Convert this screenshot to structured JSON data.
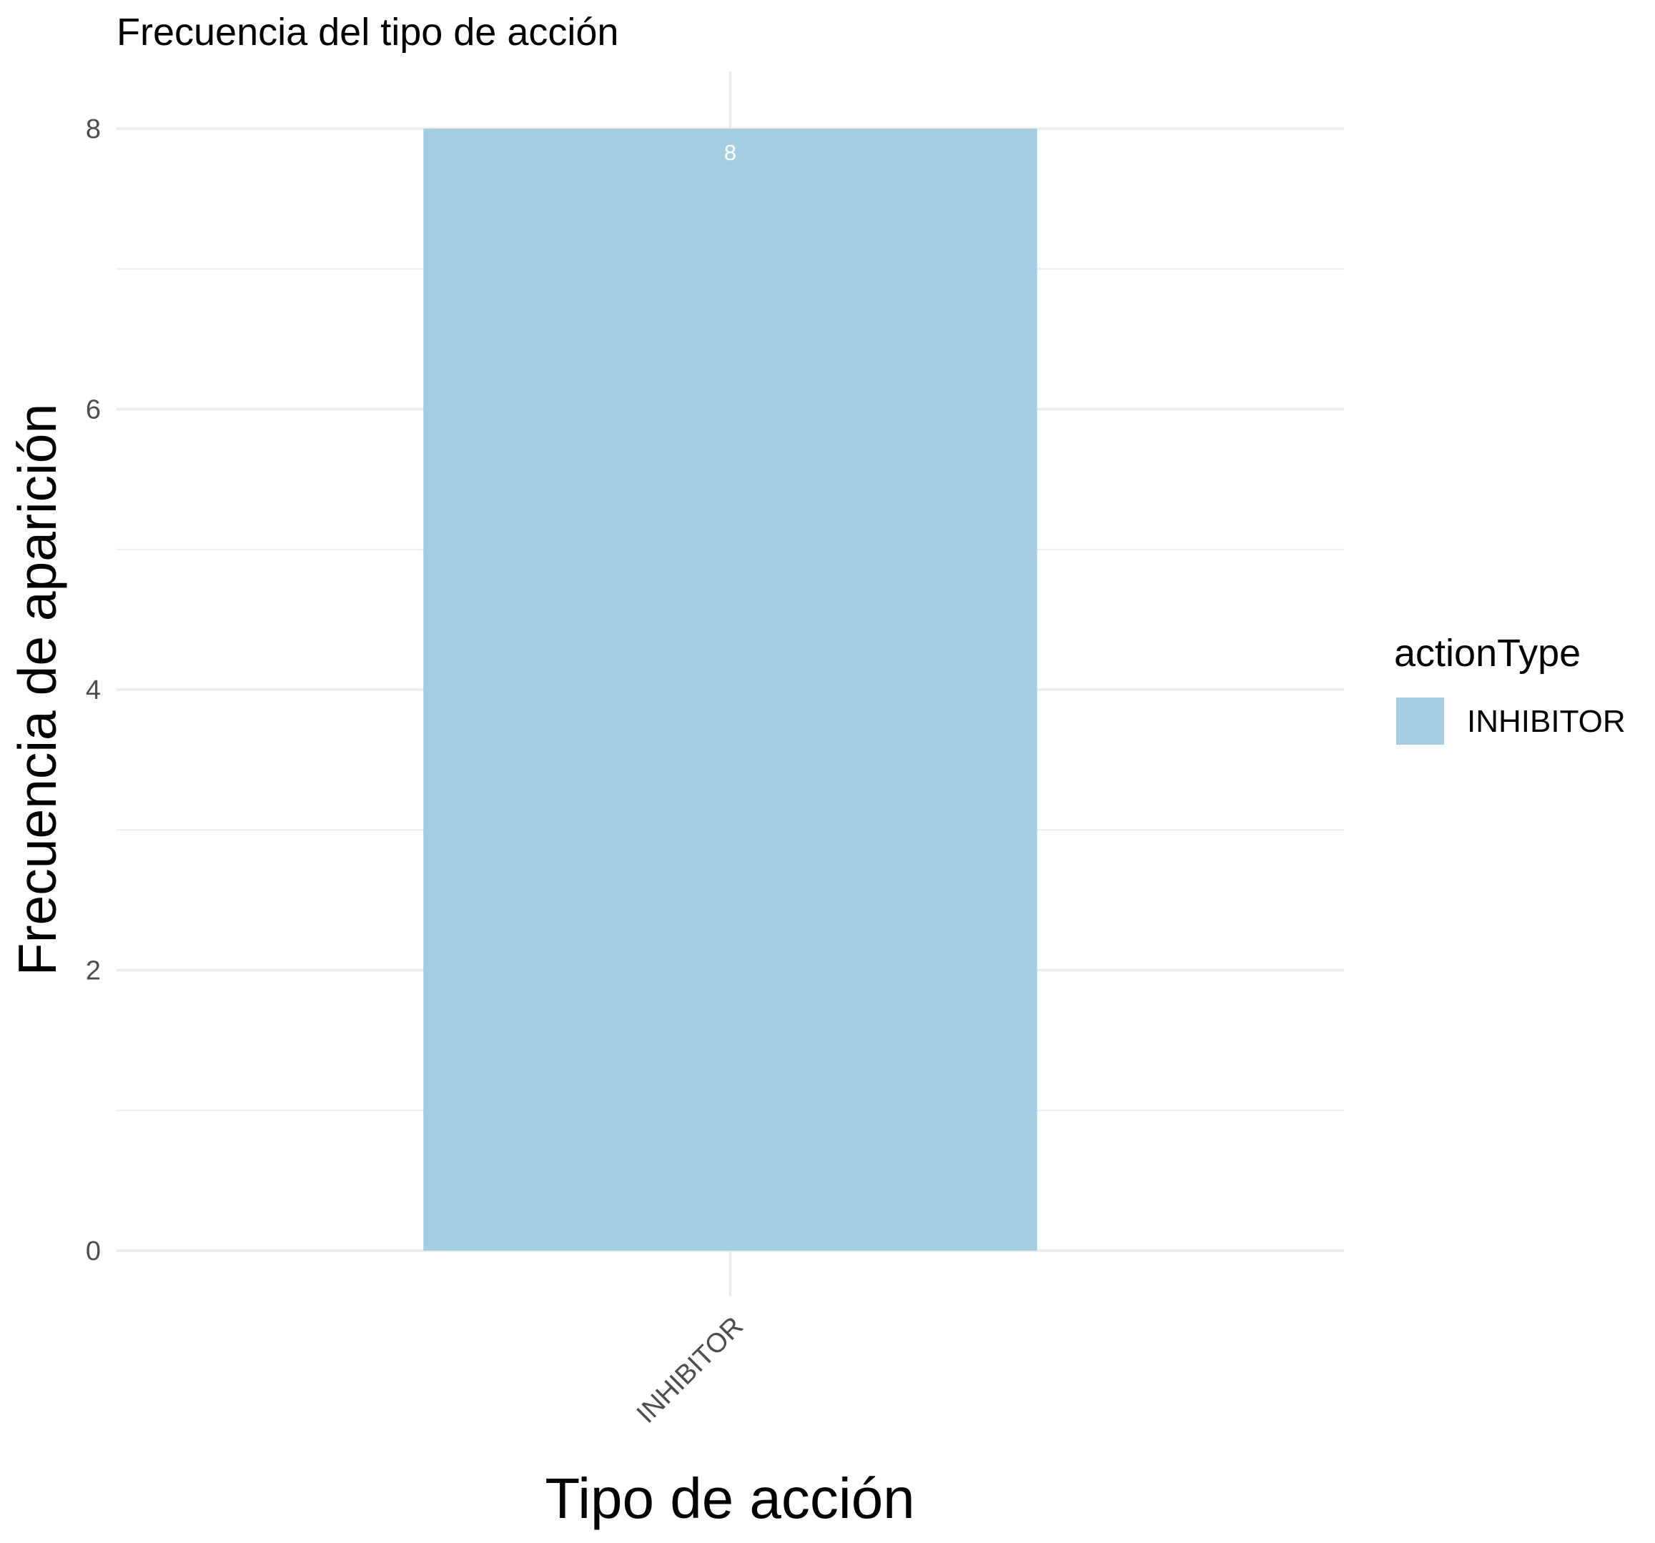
{
  "chart_data": {
    "type": "bar",
    "title": "Frecuencia del tipo de acción",
    "xlabel": "Tipo de acción",
    "ylabel": "Frecuencia de aparición",
    "categories": [
      "INHIBITOR"
    ],
    "values": [
      8
    ],
    "data_labels": [
      "8"
    ],
    "ylim": [
      0,
      8
    ],
    "y_ticks": [
      0,
      2,
      4,
      6,
      8
    ],
    "y_tick_labels": [
      "0",
      "2",
      "4",
      "6",
      "8"
    ],
    "x_tick_labels": [
      "INHIBITOR"
    ],
    "x_tick_rotation_deg": 45,
    "grid": true,
    "legend": {
      "title": "actionType",
      "position": "right",
      "items": [
        {
          "label": "INHIBITOR",
          "color": "#a6cee3"
        }
      ]
    },
    "colors": {
      "bar": "#a6cee3",
      "grid": "#ebebeb",
      "tick_text": "#4d4d4d",
      "data_label": "#ffffff"
    }
  }
}
